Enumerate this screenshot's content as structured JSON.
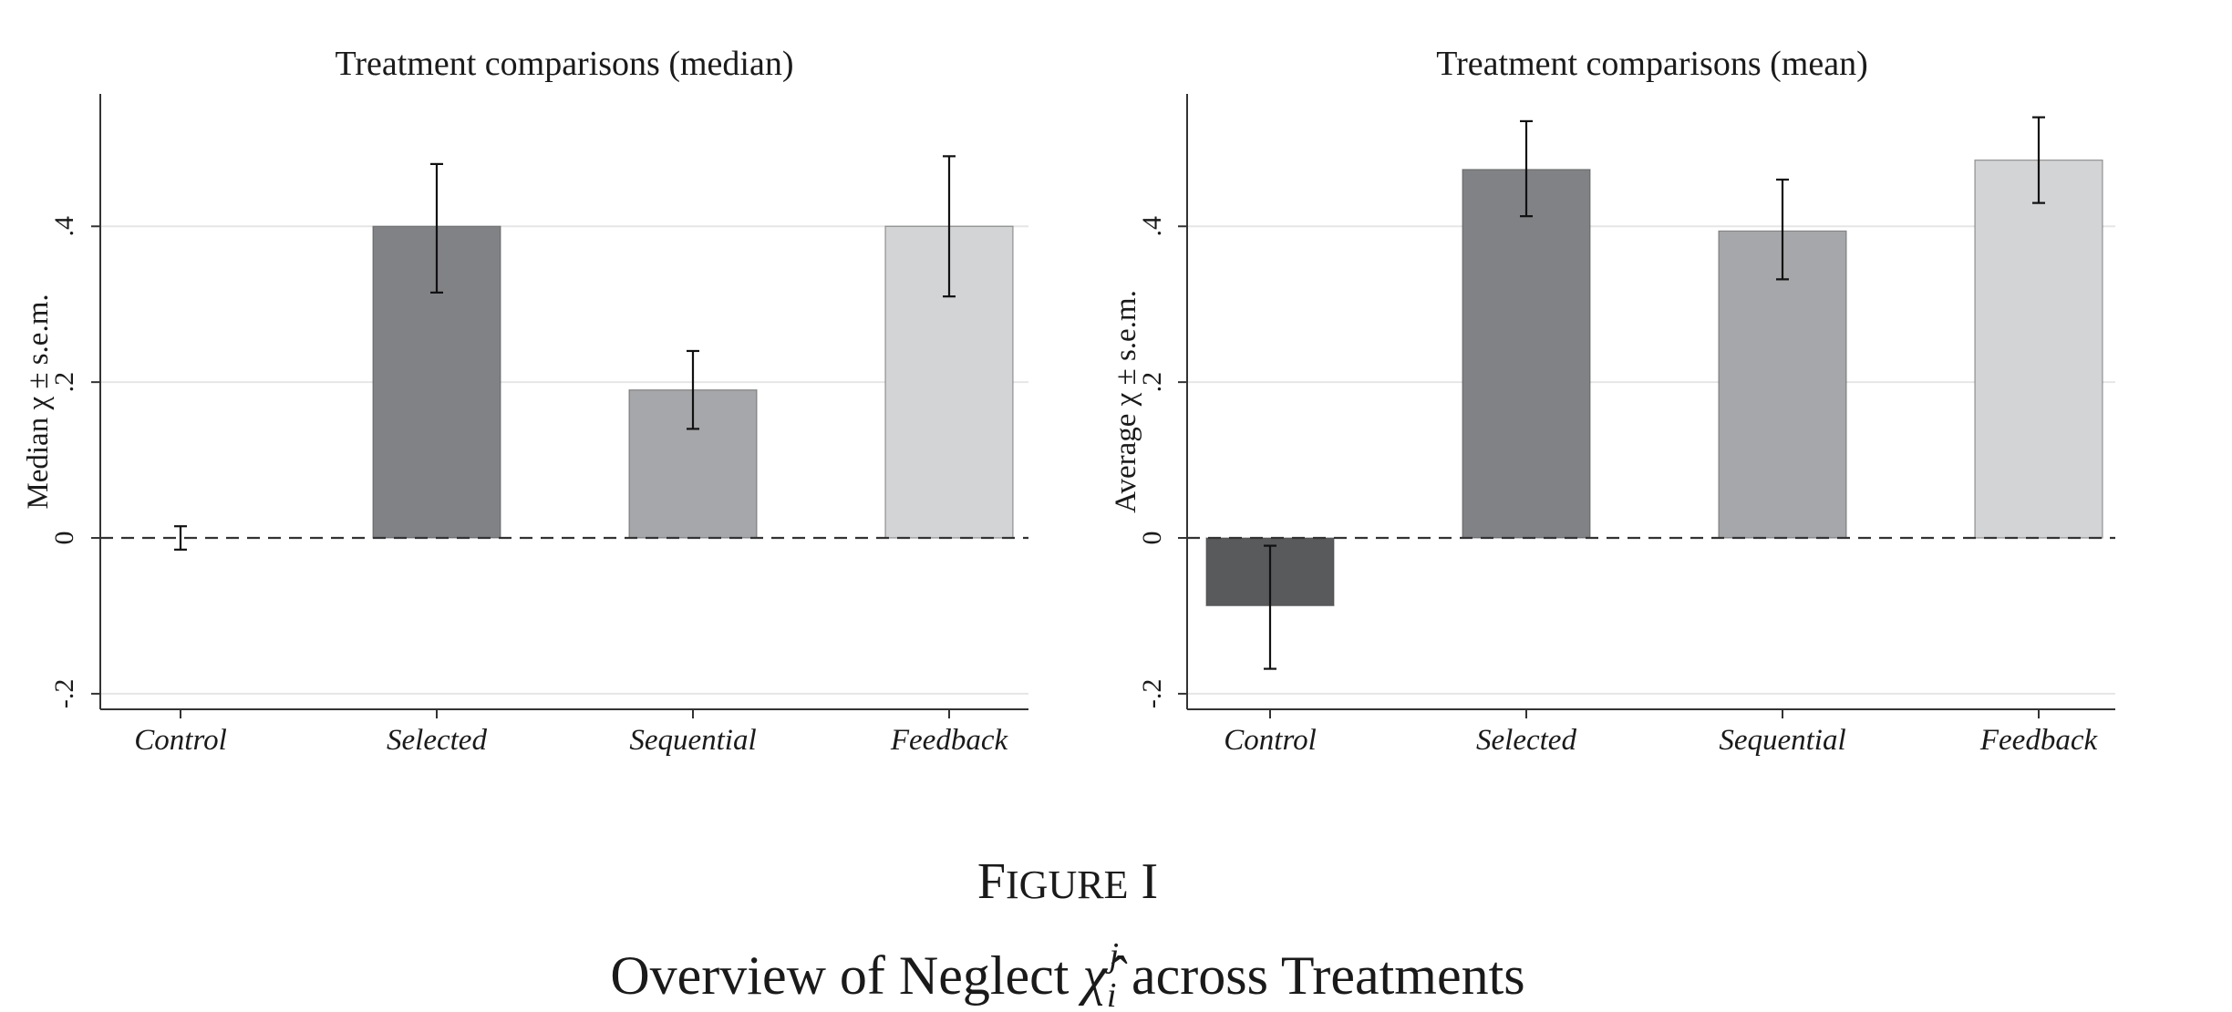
{
  "caption": {
    "figure_label_first": "F",
    "figure_label_rest": "IGURE",
    "figure_number": "I",
    "title_before": "Overview of Neglect",
    "title_symbol": "χ̂",
    "title_sub": "i",
    "title_sup": "j",
    "title_after": "across Treatments"
  },
  "chart_data": [
    {
      "type": "bar",
      "title": "Treatment comparisons (median)",
      "ylabel": "Median χ ± s.e.m.",
      "categories": [
        "Control",
        "Selected",
        "Sequential",
        "Feedback"
      ],
      "values": [
        0.0,
        0.4,
        0.19,
        0.4
      ],
      "error_low": [
        -0.015,
        0.315,
        0.14,
        0.31
      ],
      "error_high": [
        0.015,
        0.48,
        0.24,
        0.49
      ],
      "bar_colors": [
        "#595a5c",
        "#818286",
        "#a6a7aa",
        "#d3d4d6"
      ],
      "ylim": [
        -0.22,
        0.57
      ],
      "yticks": [
        -0.2,
        0,
        0.2,
        0.4
      ],
      "ytick_labels": [
        "-.2",
        "0",
        ".2",
        ".4"
      ],
      "reference_line": 0,
      "grid": true
    },
    {
      "type": "bar",
      "title": "Treatment comparisons (mean)",
      "ylabel": "Average χ ± s.e.m.",
      "categories": [
        "Control",
        "Selected",
        "Sequential",
        "Feedback"
      ],
      "values": [
        -0.087,
        0.473,
        0.394,
        0.485
      ],
      "error_low": [
        -0.168,
        0.413,
        0.332,
        0.43
      ],
      "error_high": [
        -0.01,
        0.535,
        0.46,
        0.54
      ],
      "bar_colors": [
        "#595a5c",
        "#818286",
        "#a6a7aa",
        "#d3d4d6"
      ],
      "ylim": [
        -0.22,
        0.57
      ],
      "yticks": [
        -0.2,
        0,
        0.2,
        0.4
      ],
      "ytick_labels": [
        "-.2",
        "0",
        ".2",
        ".4"
      ],
      "reference_line": 0,
      "grid": true
    }
  ]
}
